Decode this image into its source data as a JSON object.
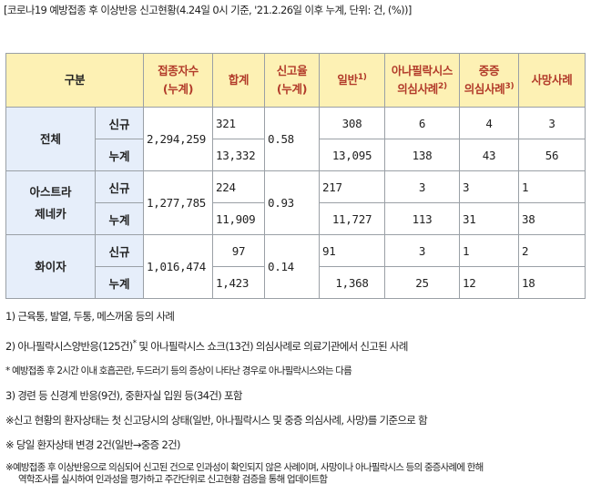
{
  "caption": "[코로나19 예방접종 후 이상반응 신고현황(4.24일 0시 기준, '21.2.26일 이후 누계, 단위: 건, (%))]",
  "header": {
    "gubun": "구분",
    "vaccinated_line1": "접종자수",
    "vaccinated_line2": "(누계)",
    "total": "합계",
    "report_rate_line1": "신고율",
    "report_rate_line2": "(누계)",
    "general": "일반",
    "general_sup": "1)",
    "anaphylaxis_line1": "아나필락시스",
    "anaphylaxis_line2": "의심사례",
    "anaphylaxis_sup": "2)",
    "serious_line1": "중증",
    "serious_line2": "의심사례",
    "serious_sup": "3)",
    "death": "사망사례"
  },
  "groups": [
    {
      "name_line1": "전체",
      "name_line2": "",
      "vaccinated": "2,294,259",
      "report_rate": "0.58",
      "rows": [
        {
          "label": "신규",
          "total": "321",
          "general": "308",
          "anaphylaxis": "6",
          "serious": "4",
          "death": "3"
        },
        {
          "label": "누계",
          "total": "13,332",
          "general": "13,095",
          "anaphylaxis": "138",
          "serious": "43",
          "death": "56"
        }
      ]
    },
    {
      "name_line1": "아스트라",
      "name_line2": "제네카",
      "vaccinated": "1,277,785",
      "report_rate": "0.93",
      "rows": [
        {
          "label": "신규",
          "total": "224",
          "general": "217",
          "anaphylaxis": "3",
          "serious": "3",
          "death": "1"
        },
        {
          "label": "누계",
          "total": "11,909",
          "general": "11,727",
          "anaphylaxis": "113",
          "serious": "31",
          "death": "38"
        }
      ]
    },
    {
      "name_line1": "화이자",
      "name_line2": "",
      "vaccinated": "1,016,474",
      "report_rate": "0.14",
      "rows": [
        {
          "label": "신규",
          "total": "97",
          "general": "91",
          "anaphylaxis": "3",
          "serious": "1",
          "death": "2"
        },
        {
          "label": "누계",
          "total": "1,423",
          "general": "1,368",
          "anaphylaxis": "25",
          "serious": "12",
          "death": "18"
        }
      ]
    }
  ],
  "notes": {
    "n1": "1) 근육통, 발열, 두통, 메스꺼움 등의 사례",
    "n2_a": "2) 아나필락시스양반응(125건)",
    "n2_sup": "*",
    "n2_b": " 및 아나필락시스 쇼크(13건) 의심사례로 의료기관에서 신고된 사례",
    "n2_star": "* 예방접종 후 2시간 이내 호흡곤란, 두드러기 등의 증상이 나타난 경우로 아나필락시스와는 다름",
    "n3": "3) 경련 등 신경계 반응(9건), 중환자실 입원 등(34건) 포함",
    "n4": "※신고 현황의 환자상태는 첫 신고당시의 상태(일반, 아나필락시스 및 중증 의심사례, 사망)를 기준으로 함",
    "n5": "※ 당일 환자상태 변경 2건(일반→중증 2건)",
    "n6_a": "※예방접종 후 이상반응으로 의심되어 신고된 건으로 인과성이 확인되지 않은 사례이며, 사망이나 아나필락시스 등의 중증사례에 한해",
    "n6_b": "역학조사를 실시하여 인과성을 평가하고 주간단위로 신고현황 검증을 통해 업데이트함"
  }
}
